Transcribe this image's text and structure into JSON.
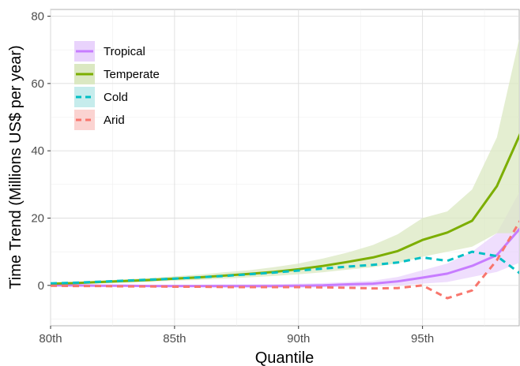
{
  "chart_data": {
    "type": "line",
    "xlabel": "Quantile",
    "ylabel": "Time Trend (Millions US$ per year)",
    "xlim": [
      80,
      98.9
    ],
    "ylim": [
      -12,
      82
    ],
    "x_ticks": [
      {
        "value": 80,
        "label": "80th"
      },
      {
        "value": 85,
        "label": "85th"
      },
      {
        "value": 90,
        "label": "90th"
      },
      {
        "value": 95,
        "label": "95th"
      }
    ],
    "y_ticks": [
      {
        "value": 0,
        "label": "0"
      },
      {
        "value": 20,
        "label": "20"
      },
      {
        "value": 40,
        "label": "40"
      },
      {
        "value": 60,
        "label": "60"
      },
      {
        "value": 80,
        "label": "80"
      }
    ],
    "grid": true,
    "legend_position": "top-left",
    "x": [
      80,
      81,
      82,
      83,
      84,
      85,
      86,
      87,
      88,
      89,
      90,
      91,
      92,
      93,
      94,
      95,
      96,
      97,
      98,
      99
    ],
    "series": [
      {
        "name": "Tropical",
        "color": "#c77cff",
        "fill": "#e9d3fc",
        "dash": "solid",
        "values": [
          0,
          0,
          -0.1,
          -0.1,
          -0.2,
          -0.2,
          -0.2,
          -0.2,
          -0.2,
          -0.2,
          -0.1,
          0,
          0.3,
          0.5,
          1.2,
          2.3,
          3.5,
          5.8,
          9,
          17.5
        ],
        "lower": [
          -0.3,
          -0.3,
          -0.4,
          -0.4,
          -0.5,
          -0.6,
          -0.6,
          -0.7,
          -0.7,
          -0.7,
          -0.7,
          -0.6,
          -0.4,
          -0.3,
          0,
          0.5,
          1,
          2.5,
          4,
          7
        ],
        "upper": [
          0.3,
          0.3,
          0.2,
          0.2,
          0.1,
          0.2,
          0.2,
          0.3,
          0.3,
          0.4,
          0.5,
          0.7,
          1,
          1.4,
          2.5,
          4.5,
          6.5,
          10,
          15.5,
          29
        ]
      },
      {
        "name": "Temperate",
        "color": "#7cae00",
        "fill": "#dbe8c2",
        "dash": "solid",
        "values": [
          0.5,
          0.7,
          1,
          1.3,
          1.6,
          2,
          2.4,
          2.9,
          3.4,
          4,
          4.8,
          5.8,
          7,
          8.3,
          10.2,
          13.5,
          15.7,
          19.2,
          29.5,
          46
        ],
        "lower": [
          0.2,
          0.4,
          0.6,
          0.8,
          1.1,
          1.4,
          1.6,
          2,
          2.4,
          2.8,
          3.3,
          3.9,
          4.7,
          5.4,
          6.6,
          8.5,
          10,
          11.5,
          15.5,
          15.5
        ],
        "upper": [
          0.8,
          1,
          1.4,
          1.8,
          2.2,
          2.7,
          3.2,
          3.9,
          4.5,
          5.4,
          6.5,
          8,
          9.8,
          12,
          15.2,
          20,
          22,
          28.5,
          44,
          76.5
        ]
      },
      {
        "name": "Cold",
        "color": "#00bfc4",
        "fill": "#c6ecec",
        "dash": "dashed",
        "values": [
          0.6,
          0.8,
          1.1,
          1.4,
          1.7,
          2,
          2.4,
          2.8,
          3.3,
          3.8,
          4.4,
          5,
          5.6,
          6.1,
          6.8,
          8.3,
          7.3,
          10,
          8.7,
          3.2
        ],
        "lower": [],
        "upper": []
      },
      {
        "name": "Arid",
        "color": "#f8766d",
        "fill": "#fbd3d1",
        "dash": "dashed",
        "values": [
          -0.1,
          -0.2,
          -0.2,
          -0.3,
          -0.3,
          -0.4,
          -0.4,
          -0.5,
          -0.5,
          -0.5,
          -0.5,
          -0.6,
          -0.7,
          -0.9,
          -0.8,
          0,
          -3.8,
          -1.5,
          7.5,
          20
        ],
        "lower": [],
        "upper": []
      }
    ]
  }
}
